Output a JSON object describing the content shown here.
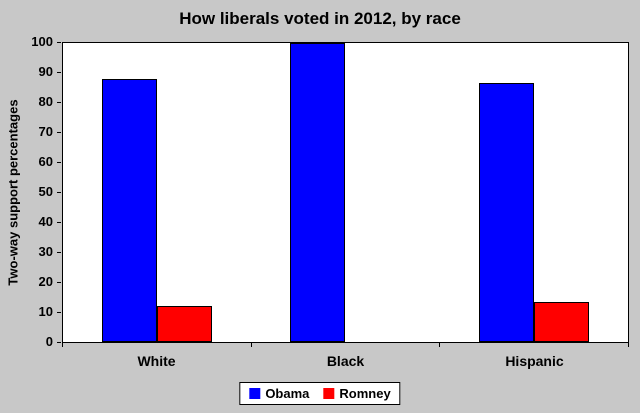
{
  "chart_data": {
    "type": "bar",
    "title": "How liberals voted in 2012, by race",
    "xlabel": "",
    "ylabel": "Two-way support percentages",
    "categories": [
      "White",
      "Black",
      "Hispanic"
    ],
    "series": [
      {
        "name": "Obama",
        "color": "#0000ff",
        "values": [
          88,
          100,
          86.5
        ]
      },
      {
        "name": "Romney",
        "color": "#ff0000",
        "values": [
          12,
          0,
          13.5
        ]
      }
    ],
    "ylim": [
      0,
      100
    ],
    "yticks": [
      0,
      10,
      20,
      30,
      40,
      50,
      60,
      70,
      80,
      90,
      100
    ],
    "grid": false,
    "legend_position": "bottom",
    "chart_background": "#c8c8c8",
    "plot_background": "#ffffff"
  }
}
